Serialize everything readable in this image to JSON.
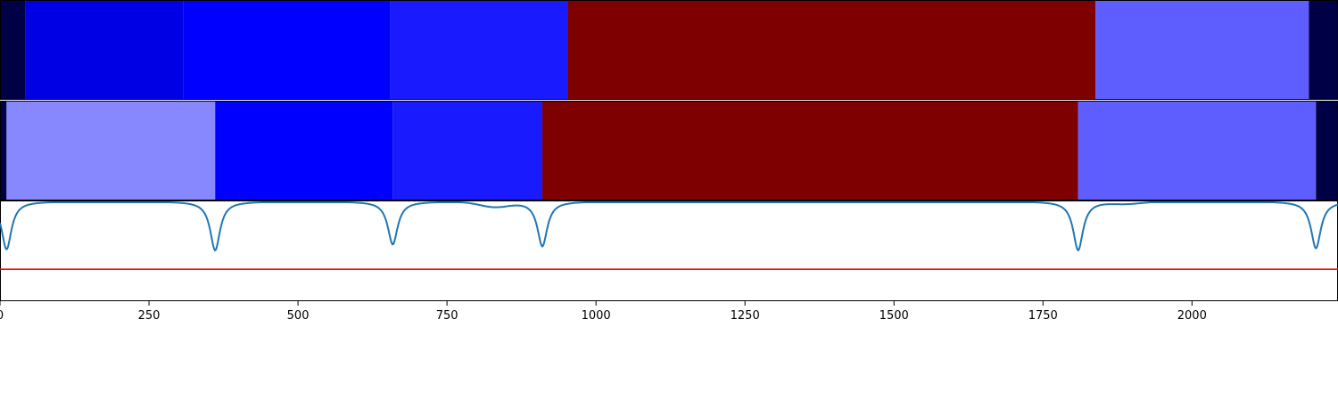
{
  "chart_data": {
    "type": "heatmap",
    "title": "",
    "xlabel": "",
    "ylabel": "",
    "xlim": [
      0,
      2245
    ],
    "x_ticks": [
      "0",
      "250",
      "500",
      "750",
      "1000",
      "1250",
      "1500",
      "1750",
      "2000"
    ],
    "tracks": [
      {
        "segments": [
          {
            "start": 0,
            "end": 42,
            "color": "#000046"
          },
          {
            "start": 42,
            "end": 307,
            "color": "#0000e4"
          },
          {
            "start": 307,
            "end": 655,
            "color": "#0000fe"
          },
          {
            "start": 655,
            "end": 952,
            "color": "#1a1afe"
          },
          {
            "start": 952,
            "end": 1838,
            "color": "#7f0000"
          },
          {
            "start": 1838,
            "end": 2196,
            "color": "#5e5efe"
          },
          {
            "start": 2196,
            "end": 2245,
            "color": "#000046"
          }
        ]
      },
      {
        "segments": [
          {
            "start": 0,
            "end": 11,
            "color": "#000046"
          },
          {
            "start": 11,
            "end": 361,
            "color": "#8888fe"
          },
          {
            "start": 361,
            "end": 659,
            "color": "#0000fe"
          },
          {
            "start": 659,
            "end": 910,
            "color": "#1a1afe"
          },
          {
            "start": 910,
            "end": 1809,
            "color": "#7f0000"
          },
          {
            "start": 1809,
            "end": 2208,
            "color": "#5e5efe"
          },
          {
            "start": 2208,
            "end": 2245,
            "color": "#000046"
          }
        ]
      }
    ],
    "series": [
      {
        "type": "line",
        "color": "#1f77b4",
        "baseline": 0,
        "dips": [
          {
            "x": 11,
            "depth": 0.48
          },
          {
            "x": 361,
            "depth": 0.49
          },
          {
            "x": 659,
            "depth": 0.43
          },
          {
            "x": 910,
            "depth": 0.45
          },
          {
            "x": 1809,
            "depth": 0.49
          },
          {
            "x": 2208,
            "depth": 0.47
          }
        ],
        "bumps": [
          {
            "x": 830,
            "depth": 0.05
          },
          {
            "x": 1890,
            "depth": 0.02
          }
        ]
      },
      {
        "type": "hline",
        "color": "#ff0000",
        "value": -0.68
      }
    ],
    "ylim": [
      -1.0,
      0.0
    ]
  }
}
